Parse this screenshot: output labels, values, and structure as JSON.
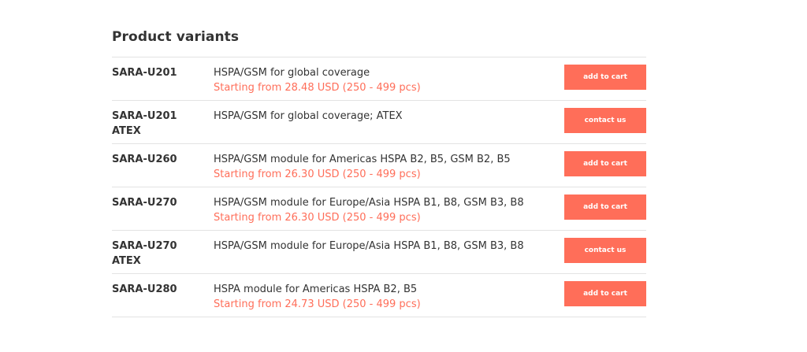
{
  "title": "Product variants",
  "colors": {
    "accent": "#ff6e59",
    "text": "#333333",
    "divider": "#e3e3e3"
  },
  "variants": [
    {
      "name": "SARA-U201",
      "description": "HSPA/GSM for global coverage",
      "price": "Starting from 28.48 USD (250 - 499 pcs)",
      "action": "add to cart"
    },
    {
      "name": "SARA-U201 ATEX",
      "description": "HSPA/GSM for global coverage; ATEX",
      "price": "",
      "action": "contact us"
    },
    {
      "name": "SARA-U260",
      "description": "HSPA/GSM module for Americas HSPA B2, B5, GSM B2, B5",
      "price": "Starting from 26.30 USD (250 - 499 pcs)",
      "action": "add to cart"
    },
    {
      "name": "SARA-U270",
      "description": "HSPA/GSM module for Europe/Asia HSPA B1, B8, GSM B3, B8",
      "price": "Starting from 26.30 USD (250 - 499 pcs)",
      "action": "add to cart"
    },
    {
      "name": "SARA-U270 ATEX",
      "description": "HSPA/GSM module for Europe/Asia HSPA B1, B8, GSM B3, B8",
      "price": "",
      "action": "contact us"
    },
    {
      "name": "SARA-U280",
      "description": "HSPA module for Americas HSPA B2, B5",
      "price": "Starting from 24.73 USD (250 - 499 pcs)",
      "action": "add to cart"
    }
  ]
}
